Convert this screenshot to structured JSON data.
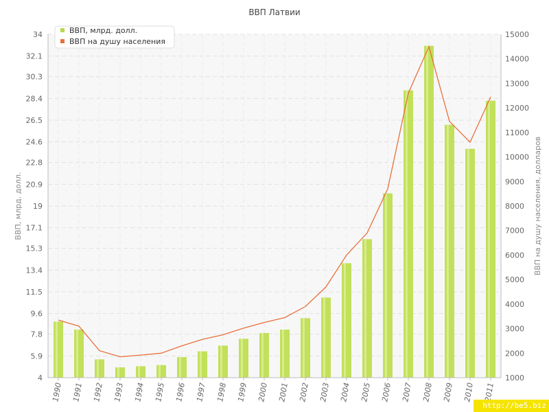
{
  "chart_data": {
    "type": "bar",
    "title": "ВВП Латвии",
    "categories": [
      "1990",
      "1991",
      "1992",
      "1993",
      "1994",
      "1995",
      "1996",
      "1997",
      "1998",
      "1999",
      "2000",
      "2001",
      "2002",
      "2003",
      "2004",
      "2005",
      "2006",
      "2007",
      "2008",
      "2009",
      "2010",
      "2011"
    ],
    "series": [
      {
        "name": "ВВП, млрд. долл.",
        "type": "bar",
        "axis": "left",
        "color": "#c2e05a",
        "values": [
          8.9,
          8.2,
          5.6,
          4.9,
          5.0,
          5.1,
          5.8,
          6.3,
          6.8,
          7.4,
          7.9,
          8.2,
          9.2,
          11.0,
          14.0,
          16.1,
          20.1,
          29.1,
          33.0,
          26.1,
          24.0,
          28.2
        ]
      },
      {
        "name": "ВВП на душу населения",
        "type": "line",
        "axis": "right",
        "color": "#e8703a",
        "values": [
          3350,
          3100,
          2100,
          1850,
          1920,
          2000,
          2300,
          2560,
          2750,
          3020,
          3250,
          3450,
          3900,
          4700,
          6000,
          6900,
          8700,
          12600,
          14500,
          11450,
          10600,
          12450
        ]
      }
    ],
    "yaxis_left": {
      "label": "ВВП, млрд. долл.",
      "ticks": [
        "34",
        "32.1",
        "30.3",
        "28.4",
        "26.5",
        "24.6",
        "22.8",
        "20.9",
        "19",
        "17.1",
        "15.3",
        "13.4",
        "11.5",
        "9.6",
        "7.8",
        "5.9",
        "4"
      ],
      "range": [
        4,
        34
      ]
    },
    "yaxis_right": {
      "label": "ВВП на душу населения, долларов",
      "ticks": [
        "15000",
        "14000",
        "13000",
        "12000",
        "11000",
        "10000",
        "9000",
        "8000",
        "7000",
        "6000",
        "5000",
        "4000",
        "3000",
        "2000",
        "1000"
      ],
      "range": [
        1000,
        15000
      ]
    },
    "grid": true,
    "legend": "top-left"
  },
  "watermark": "http://be5.biz"
}
